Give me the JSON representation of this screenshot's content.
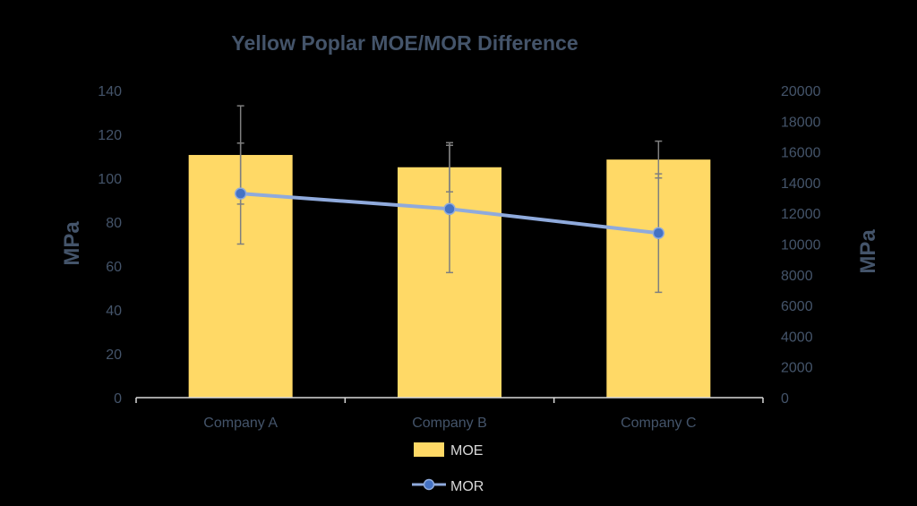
{
  "chart_data": {
    "type": "bar",
    "title": "Yellow Poplar MOE/MOR Difference",
    "categories": [
      "Company A",
      "Company B",
      "Company C"
    ],
    "series": [
      {
        "name": "MOE",
        "kind": "bar",
        "axis": "right",
        "values": [
          15800,
          15000,
          15500
        ],
        "error": [
          3200,
          1600,
          1200
        ],
        "color": "#FFD966"
      },
      {
        "name": "MOR",
        "kind": "line",
        "axis": "left",
        "values": [
          93,
          86,
          75
        ],
        "error": [
          23,
          29,
          27
        ],
        "color": "#8FAADC",
        "marker_color": "#4472C4"
      }
    ],
    "ylabel": "MPa",
    "ylim": [
      0,
      140
    ],
    "yticks": [
      "0",
      "20",
      "40",
      "60",
      "80",
      "100",
      "120",
      "140"
    ],
    "y2label": "MPa",
    "y2lim": [
      0,
      20000
    ],
    "y2ticks": [
      "0",
      "2000",
      "4000",
      "6000",
      "8000",
      "10000",
      "12000",
      "14000",
      "16000",
      "18000",
      "20000"
    ],
    "legend_position": "bottom",
    "grid": false,
    "text_color": "#44546A",
    "axis_color": "#D9D9D9",
    "errorbar_color": "#7F7F7F"
  }
}
